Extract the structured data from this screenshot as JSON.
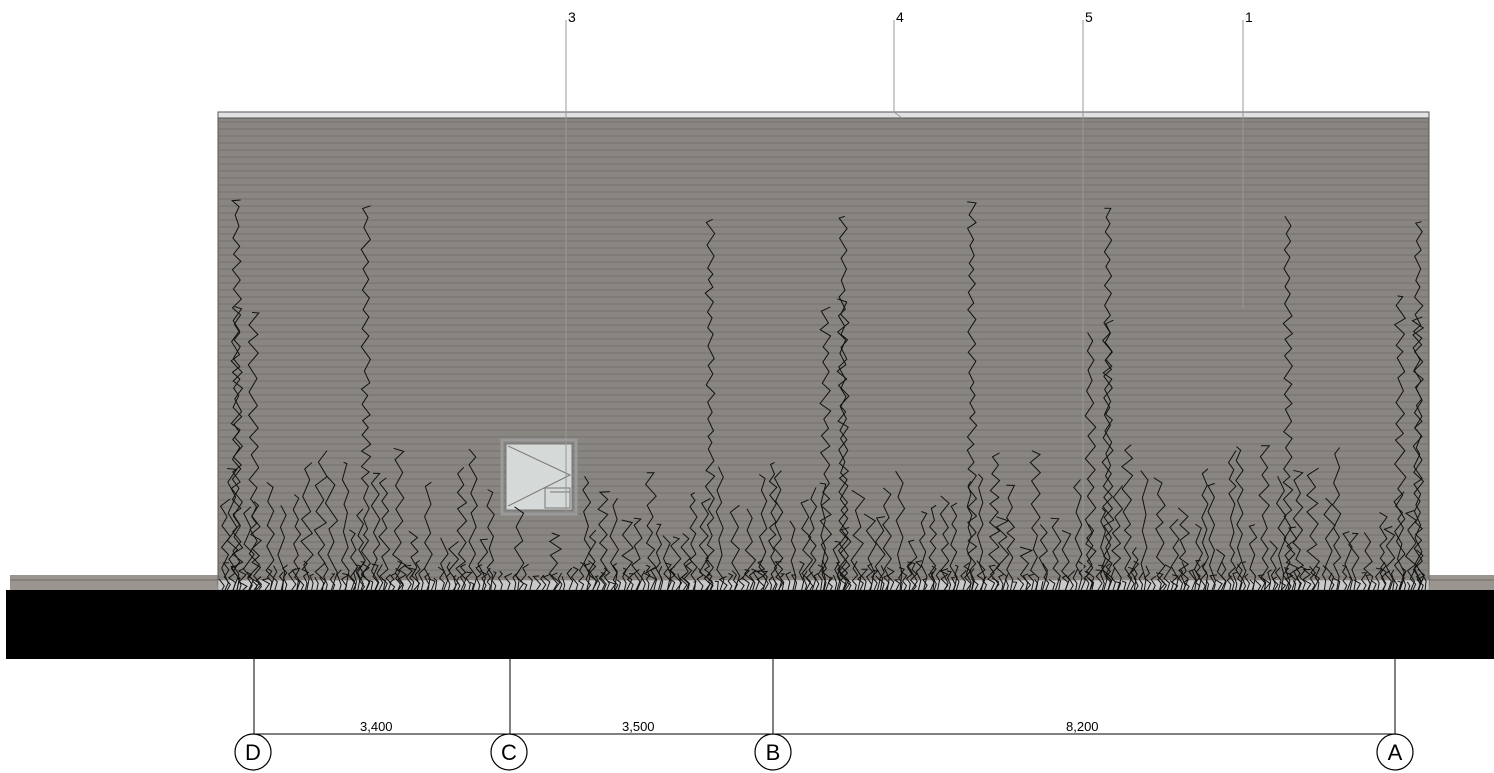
{
  "elevation": {
    "colors": {
      "cladding": "#898581",
      "cladding_line": "#6f6b67",
      "coping": "#e2e2e2",
      "ground": "#000000",
      "plant_stroke": "#111111",
      "window_frame": "#9a9a9a",
      "window_glass": "#d5d9d8",
      "leader": "#999999"
    },
    "callouts": [
      {
        "label": "3",
        "target": "window"
      },
      {
        "label": "4",
        "target": "roof-coping"
      },
      {
        "label": "5",
        "target": "climbing-plants"
      },
      {
        "label": "1",
        "target": "wall-cladding"
      }
    ],
    "grid": {
      "lines": [
        {
          "label": "D"
        },
        {
          "label": "C"
        },
        {
          "label": "B"
        },
        {
          "label": "A"
        }
      ],
      "dimensions": [
        {
          "text": "3,400"
        },
        {
          "text": "3,500"
        },
        {
          "text": "8,200"
        }
      ]
    }
  }
}
